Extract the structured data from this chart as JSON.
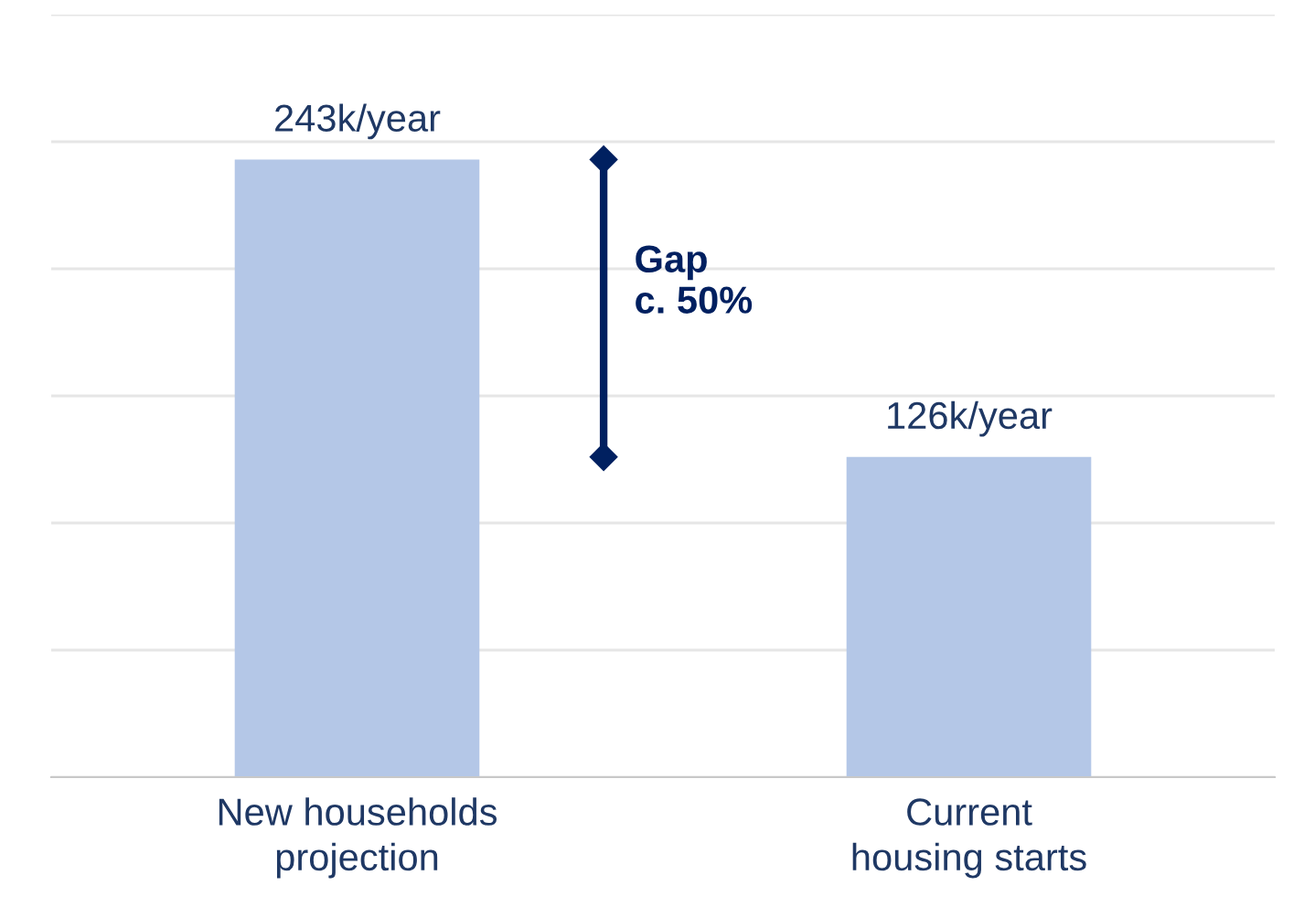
{
  "chart_data": {
    "type": "bar",
    "categories": [
      "New households\nprojection",
      "Current\nhousing starts"
    ],
    "values": [
      243,
      126
    ],
    "value_labels": [
      "243k/year",
      "126k/year"
    ],
    "color": "#b4c7e7",
    "ylim": [
      0,
      300
    ],
    "yticks": [
      {
        "value": 0,
        "label": null
      },
      {
        "value": 50,
        "label": null
      },
      {
        "value": 100,
        "label": null
      },
      {
        "value": 150,
        "label": null
      },
      {
        "value": 200,
        "label": null
      },
      {
        "value": 250,
        "label": null
      },
      {
        "value": 300,
        "label": null
      }
    ],
    "grid": "y",
    "tick_labels": "x",
    "legend": false,
    "annotations": [
      "Gap\nc. 50%"
    ]
  }
}
